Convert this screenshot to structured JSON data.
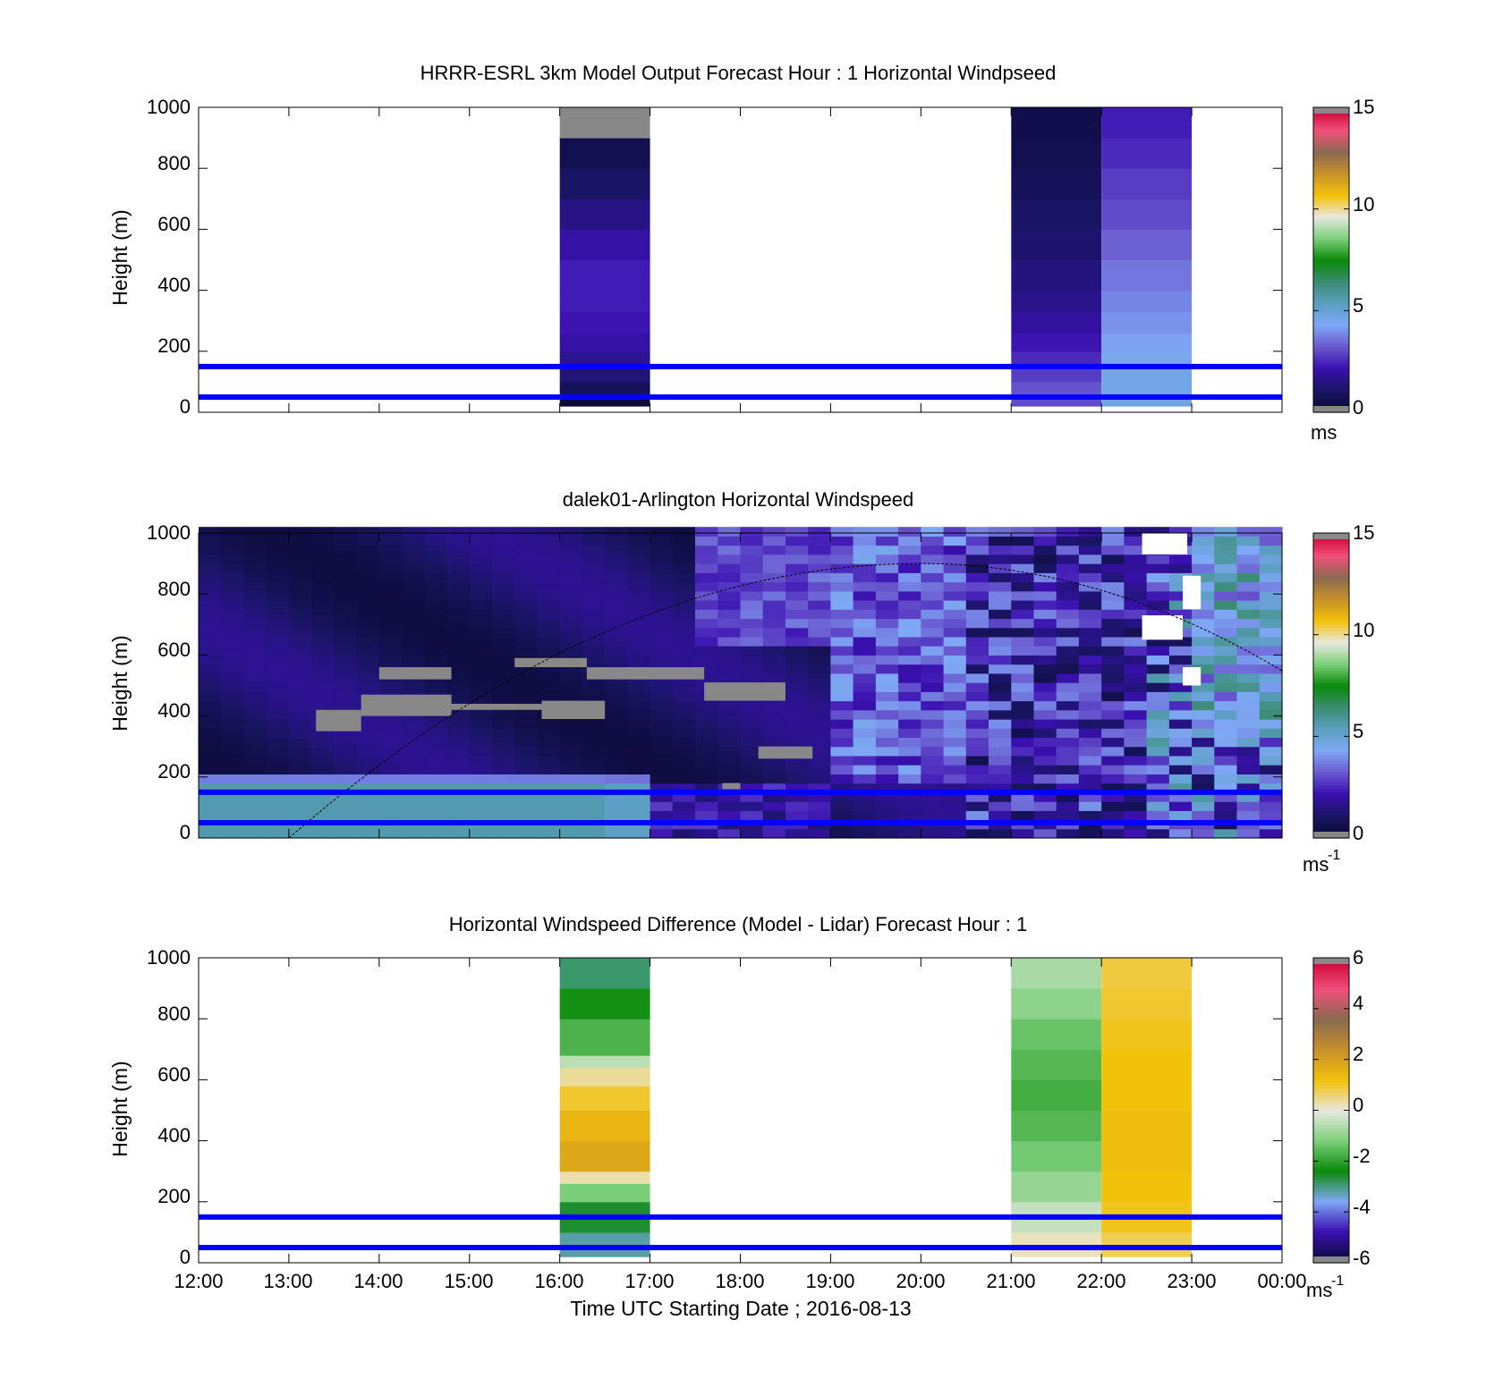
{
  "chart_data": [
    {
      "type": "heatmap",
      "title": "HRRR-ESRL 3km Model Output   Forecast Hour : 1 Horizontal Windpseed",
      "ylabel": "Height (m)",
      "ylim": [
        0,
        1000
      ],
      "yticks": [
        "0",
        "200",
        "400",
        "600",
        "800",
        "1000"
      ],
      "x_hours": [
        12,
        24
      ],
      "colorbar": {
        "ticks": [
          "0",
          "5",
          "10",
          "15"
        ],
        "range": [
          0,
          15
        ],
        "unit": "ms"
      },
      "reference_lines_m": [
        50,
        150
      ],
      "columns": [
        {
          "start_hour": 16,
          "end_hour": 17,
          "bins": [
            {
              "h0": 20,
              "h1": 50,
              "v": 0.2
            },
            {
              "h0": 50,
              "h1": 100,
              "v": 0.8
            },
            {
              "h0": 100,
              "h1": 150,
              "v": 1.3
            },
            {
              "h0": 150,
              "h1": 200,
              "v": 1.7
            },
            {
              "h0": 200,
              "h1": 260,
              "v": 2.0
            },
            {
              "h0": 260,
              "h1": 330,
              "v": 2.2
            },
            {
              "h0": 330,
              "h1": 400,
              "v": 2.3
            },
            {
              "h0": 400,
              "h1": 500,
              "v": 2.3
            },
            {
              "h0": 500,
              "h1": 600,
              "v": 2.0
            },
            {
              "h0": 600,
              "h1": 700,
              "v": 1.5
            },
            {
              "h0": 700,
              "h1": 800,
              "v": 1.0
            },
            {
              "h0": 800,
              "h1": 900,
              "v": 0.6
            },
            {
              "h0": 900,
              "h1": 1000,
              "v": null
            }
          ]
        },
        {
          "start_hour": 21,
          "end_hour": 22,
          "bins": [
            {
              "h0": 20,
              "h1": 50,
              "v": 3.0
            },
            {
              "h0": 50,
              "h1": 100,
              "v": 3.1
            },
            {
              "h0": 100,
              "h1": 150,
              "v": 2.8
            },
            {
              "h0": 150,
              "h1": 200,
              "v": 2.5
            },
            {
              "h0": 200,
              "h1": 260,
              "v": 2.2
            },
            {
              "h0": 260,
              "h1": 330,
              "v": 1.9
            },
            {
              "h0": 330,
              "h1": 400,
              "v": 1.6
            },
            {
              "h0": 400,
              "h1": 500,
              "v": 1.4
            },
            {
              "h0": 500,
              "h1": 600,
              "v": 1.2
            },
            {
              "h0": 600,
              "h1": 700,
              "v": 1.0
            },
            {
              "h0": 700,
              "h1": 800,
              "v": 0.8
            },
            {
              "h0": 800,
              "h1": 900,
              "v": 0.6
            },
            {
              "h0": 900,
              "h1": 1000,
              "v": 0.5
            }
          ]
        },
        {
          "start_hour": 22,
          "end_hour": 23,
          "bins": [
            {
              "h0": 20,
              "h1": 50,
              "v": 4.7
            },
            {
              "h0": 50,
              "h1": 100,
              "v": 4.6
            },
            {
              "h0": 100,
              "h1": 150,
              "v": 4.6
            },
            {
              "h0": 150,
              "h1": 200,
              "v": 4.4
            },
            {
              "h0": 200,
              "h1": 260,
              "v": 4.2
            },
            {
              "h0": 260,
              "h1": 330,
              "v": 4.0
            },
            {
              "h0": 330,
              "h1": 400,
              "v": 3.8
            },
            {
              "h0": 400,
              "h1": 500,
              "v": 3.6
            },
            {
              "h0": 500,
              "h1": 600,
              "v": 3.3
            },
            {
              "h0": 600,
              "h1": 700,
              "v": 3.0
            },
            {
              "h0": 700,
              "h1": 800,
              "v": 2.8
            },
            {
              "h0": 800,
              "h1": 900,
              "v": 2.5
            },
            {
              "h0": 900,
              "h1": 1000,
              "v": 2.3
            }
          ]
        }
      ]
    },
    {
      "type": "heatmap",
      "title": "dalek01-Arlington  Horizontal Windspeed",
      "ylabel": "Height (m)",
      "ylim": [
        0,
        1000
      ],
      "yticks": [
        "0",
        "200",
        "400",
        "600",
        "800",
        "1000"
      ],
      "x_hours": [
        12,
        24
      ],
      "colorbar": {
        "ticks": [
          "0",
          "5",
          "10",
          "15"
        ],
        "range": [
          0,
          15
        ],
        "unit": "ms",
        "unit_exp": "-1"
      },
      "reference_lines_m": [
        50,
        150
      ],
      "time_step_minutes": 15,
      "height_step_m": 30,
      "field_description": "lidar profiles 12:00-23:45 UTC; low jet of 4-6 m/s below 200 m until 17:00, weak winds 0.5-2 m/s aloft, stronger and noisier above after 19:00",
      "boundary_layer_curve": {
        "base_m": 0,
        "peak_m": 900,
        "start_hour": 13.0,
        "peak_hour": 20.0,
        "end_hour": 24.0
      }
    },
    {
      "type": "heatmap",
      "title": "Horizontal Windspeed Difference (Model - Lidar) Forecast Hour : 1",
      "ylabel": "Height (m)",
      "xlabel": "Time UTC  Starting Date ; 2016-08-13",
      "ylim": [
        0,
        1000
      ],
      "yticks": [
        "0",
        "200",
        "400",
        "600",
        "800",
        "1000"
      ],
      "xticks": [
        "12:00",
        "13:00",
        "14:00",
        "15:00",
        "16:00",
        "17:00",
        "18:00",
        "19:00",
        "20:00",
        "21:00",
        "22:00",
        "23:00",
        "00:00"
      ],
      "x_hours": [
        12,
        24
      ],
      "colorbar": {
        "ticks": [
          "-6",
          "-4",
          "-2",
          "0",
          "2",
          "4",
          "6"
        ],
        "range": [
          -6,
          6
        ],
        "unit": "ms",
        "unit_exp": "-1"
      },
      "reference_lines_m": [
        50,
        150
      ],
      "columns": [
        {
          "start_hour": 16,
          "end_hour": 17,
          "bins": [
            {
              "h0": 20,
              "h1": 100,
              "v": -3.2
            },
            {
              "h0": 100,
              "h1": 200,
              "v": -2.6
            },
            {
              "h0": 200,
              "h1": 260,
              "v": -1.2
            },
            {
              "h0": 260,
              "h1": 300,
              "v": 0.3
            },
            {
              "h0": 300,
              "h1": 400,
              "v": 1.8
            },
            {
              "h0": 400,
              "h1": 500,
              "v": 1.5
            },
            {
              "h0": 500,
              "h1": 580,
              "v": 1.0
            },
            {
              "h0": 580,
              "h1": 640,
              "v": 0.4
            },
            {
              "h0": 640,
              "h1": 680,
              "v": -0.5
            },
            {
              "h0": 680,
              "h1": 800,
              "v": -1.7
            },
            {
              "h0": 800,
              "h1": 900,
              "v": -2.3
            },
            {
              "h0": 900,
              "h1": 1000,
              "v": -2.9
            }
          ]
        },
        {
          "start_hour": 21,
          "end_hour": 22,
          "bins": [
            {
              "h0": 20,
              "h1": 100,
              "v": 0.2
            },
            {
              "h0": 100,
              "h1": 200,
              "v": -0.4
            },
            {
              "h0": 200,
              "h1": 300,
              "v": -0.9
            },
            {
              "h0": 300,
              "h1": 400,
              "v": -1.3
            },
            {
              "h0": 400,
              "h1": 500,
              "v": -1.6
            },
            {
              "h0": 500,
              "h1": 600,
              "v": -1.8
            },
            {
              "h0": 600,
              "h1": 700,
              "v": -1.6
            },
            {
              "h0": 700,
              "h1": 800,
              "v": -1.4
            },
            {
              "h0": 800,
              "h1": 900,
              "v": -1.0
            },
            {
              "h0": 900,
              "h1": 1000,
              "v": -0.7
            }
          ]
        },
        {
          "start_hour": 22,
          "end_hour": 23,
          "bins": [
            {
              "h0": 20,
              "h1": 100,
              "v": 0.8
            },
            {
              "h0": 100,
              "h1": 200,
              "v": 1.1
            },
            {
              "h0": 200,
              "h1": 300,
              "v": 1.2
            },
            {
              "h0": 300,
              "h1": 400,
              "v": 1.3
            },
            {
              "h0": 400,
              "h1": 500,
              "v": 1.3
            },
            {
              "h0": 500,
              "h1": 600,
              "v": 1.2
            },
            {
              "h0": 600,
              "h1": 700,
              "v": 1.2
            },
            {
              "h0": 700,
              "h1": 800,
              "v": 1.1
            },
            {
              "h0": 800,
              "h1": 900,
              "v": 1.0
            },
            {
              "h0": 900,
              "h1": 1000,
              "v": 0.9
            }
          ]
        }
      ]
    }
  ],
  "colors": {
    "reference_line": "#0000ff",
    "missing": "#888888",
    "windspeed_colormap": [
      "#0a0a33",
      "#1a1566",
      "#3a10b0",
      "#6a5ad0",
      "#7fa8f5",
      "#5a9ec0",
      "#3a8c70",
      "#0a8a0a",
      "#7ccf7a",
      "#e8e8e0",
      "#f2c10a",
      "#c8902a",
      "#8a6a50",
      "#f0507a",
      "#cc0033"
    ],
    "difference_colormap": [
      "#0a0a33",
      "#3a10b0",
      "#7fa8f5",
      "#0a8a0a",
      "#7ccf7a",
      "#e8e8e0",
      "#f2c10a",
      "#c8902a",
      "#8a6a50",
      "#f0507a",
      "#cc0033"
    ]
  }
}
